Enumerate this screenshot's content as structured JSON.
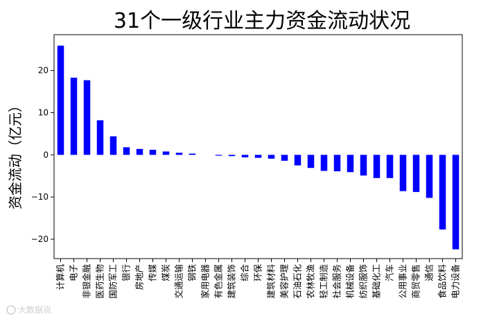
{
  "chart_data": {
    "type": "bar",
    "title": "31个一级行业主力资金流动状况",
    "xlabel": "",
    "ylabel": "资金流动（亿元）",
    "ylim": [
      -24.6,
      28.5
    ],
    "yticks": [
      -20,
      -10,
      0,
      10,
      20
    ],
    "grid": false,
    "bar_color": "#0000ff",
    "categories": [
      "计算机",
      "电子",
      "非银金融",
      "医药生物",
      "国防军工",
      "银行",
      "房地产",
      "传媒",
      "煤炭",
      "交通运输",
      "钢铁",
      "家用电器",
      "有色金属",
      "建筑装饰",
      "综合",
      "环保",
      "建筑材料",
      "美容护理",
      "石油石化",
      "农林牧渔",
      "轻工制造",
      "社会服务",
      "机械设备",
      "纺织服饰",
      "基础化工",
      "汽车",
      "公用事业",
      "商贸零售",
      "通信",
      "食品饮料",
      "电力设备"
    ],
    "values": [
      25.9,
      18.3,
      17.7,
      8.2,
      4.4,
      1.8,
      1.4,
      1.2,
      0.8,
      0.5,
      0.3,
      0.0,
      -0.2,
      -0.3,
      -0.6,
      -0.7,
      -0.9,
      -1.4,
      -2.5,
      -3.1,
      -3.8,
      -3.9,
      -4.1,
      -4.9,
      -5.5,
      -5.5,
      -8.6,
      -8.8,
      -10.2,
      -17.7,
      -22.4
    ]
  },
  "watermark": "大数据说"
}
